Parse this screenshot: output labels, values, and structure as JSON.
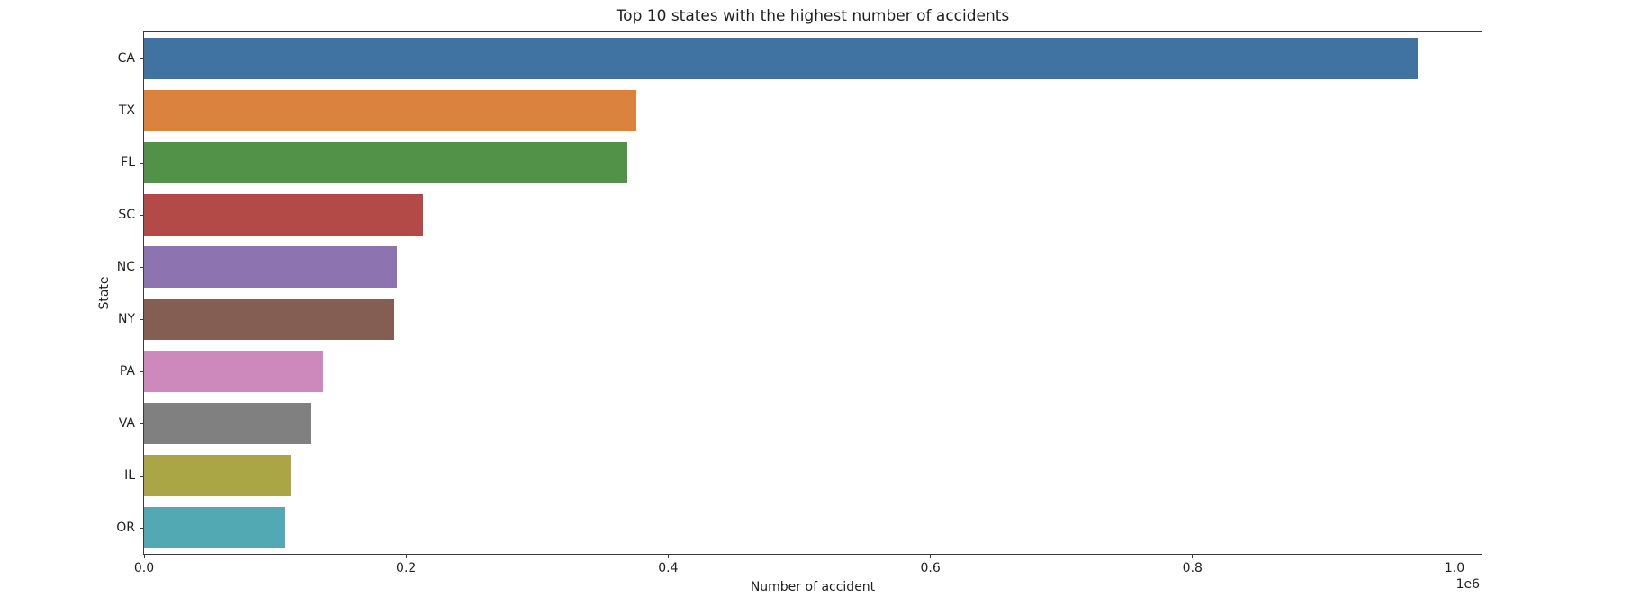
{
  "chart_data": {
    "type": "bar",
    "orientation": "horizontal",
    "title": "Top 10 states with the highest number of accidents",
    "xlabel": "Number of accident",
    "ylabel": "State",
    "x_offset_label": "1e6",
    "categories": [
      "CA",
      "TX",
      "FL",
      "SC",
      "NC",
      "NY",
      "PA",
      "VA",
      "IL",
      "OR"
    ],
    "values": [
      972000,
      376000,
      369000,
      213000,
      193000,
      191000,
      137000,
      128000,
      112000,
      108000
    ],
    "bar_colors": [
      "#40739f",
      "#d9833f",
      "#529248",
      "#b34a48",
      "#8d74b1",
      "#855e53",
      "#cd89bc",
      "#808080",
      "#aba645",
      "#52a8b3"
    ],
    "xlim": [
      0,
      1020600
    ],
    "xticks": [
      0,
      200000,
      400000,
      600000,
      800000,
      1000000
    ],
    "xtick_labels": [
      "0.0",
      "0.2",
      "0.4",
      "0.6",
      "0.8",
      "1.0"
    ],
    "grid": false,
    "legend_position": "none"
  }
}
